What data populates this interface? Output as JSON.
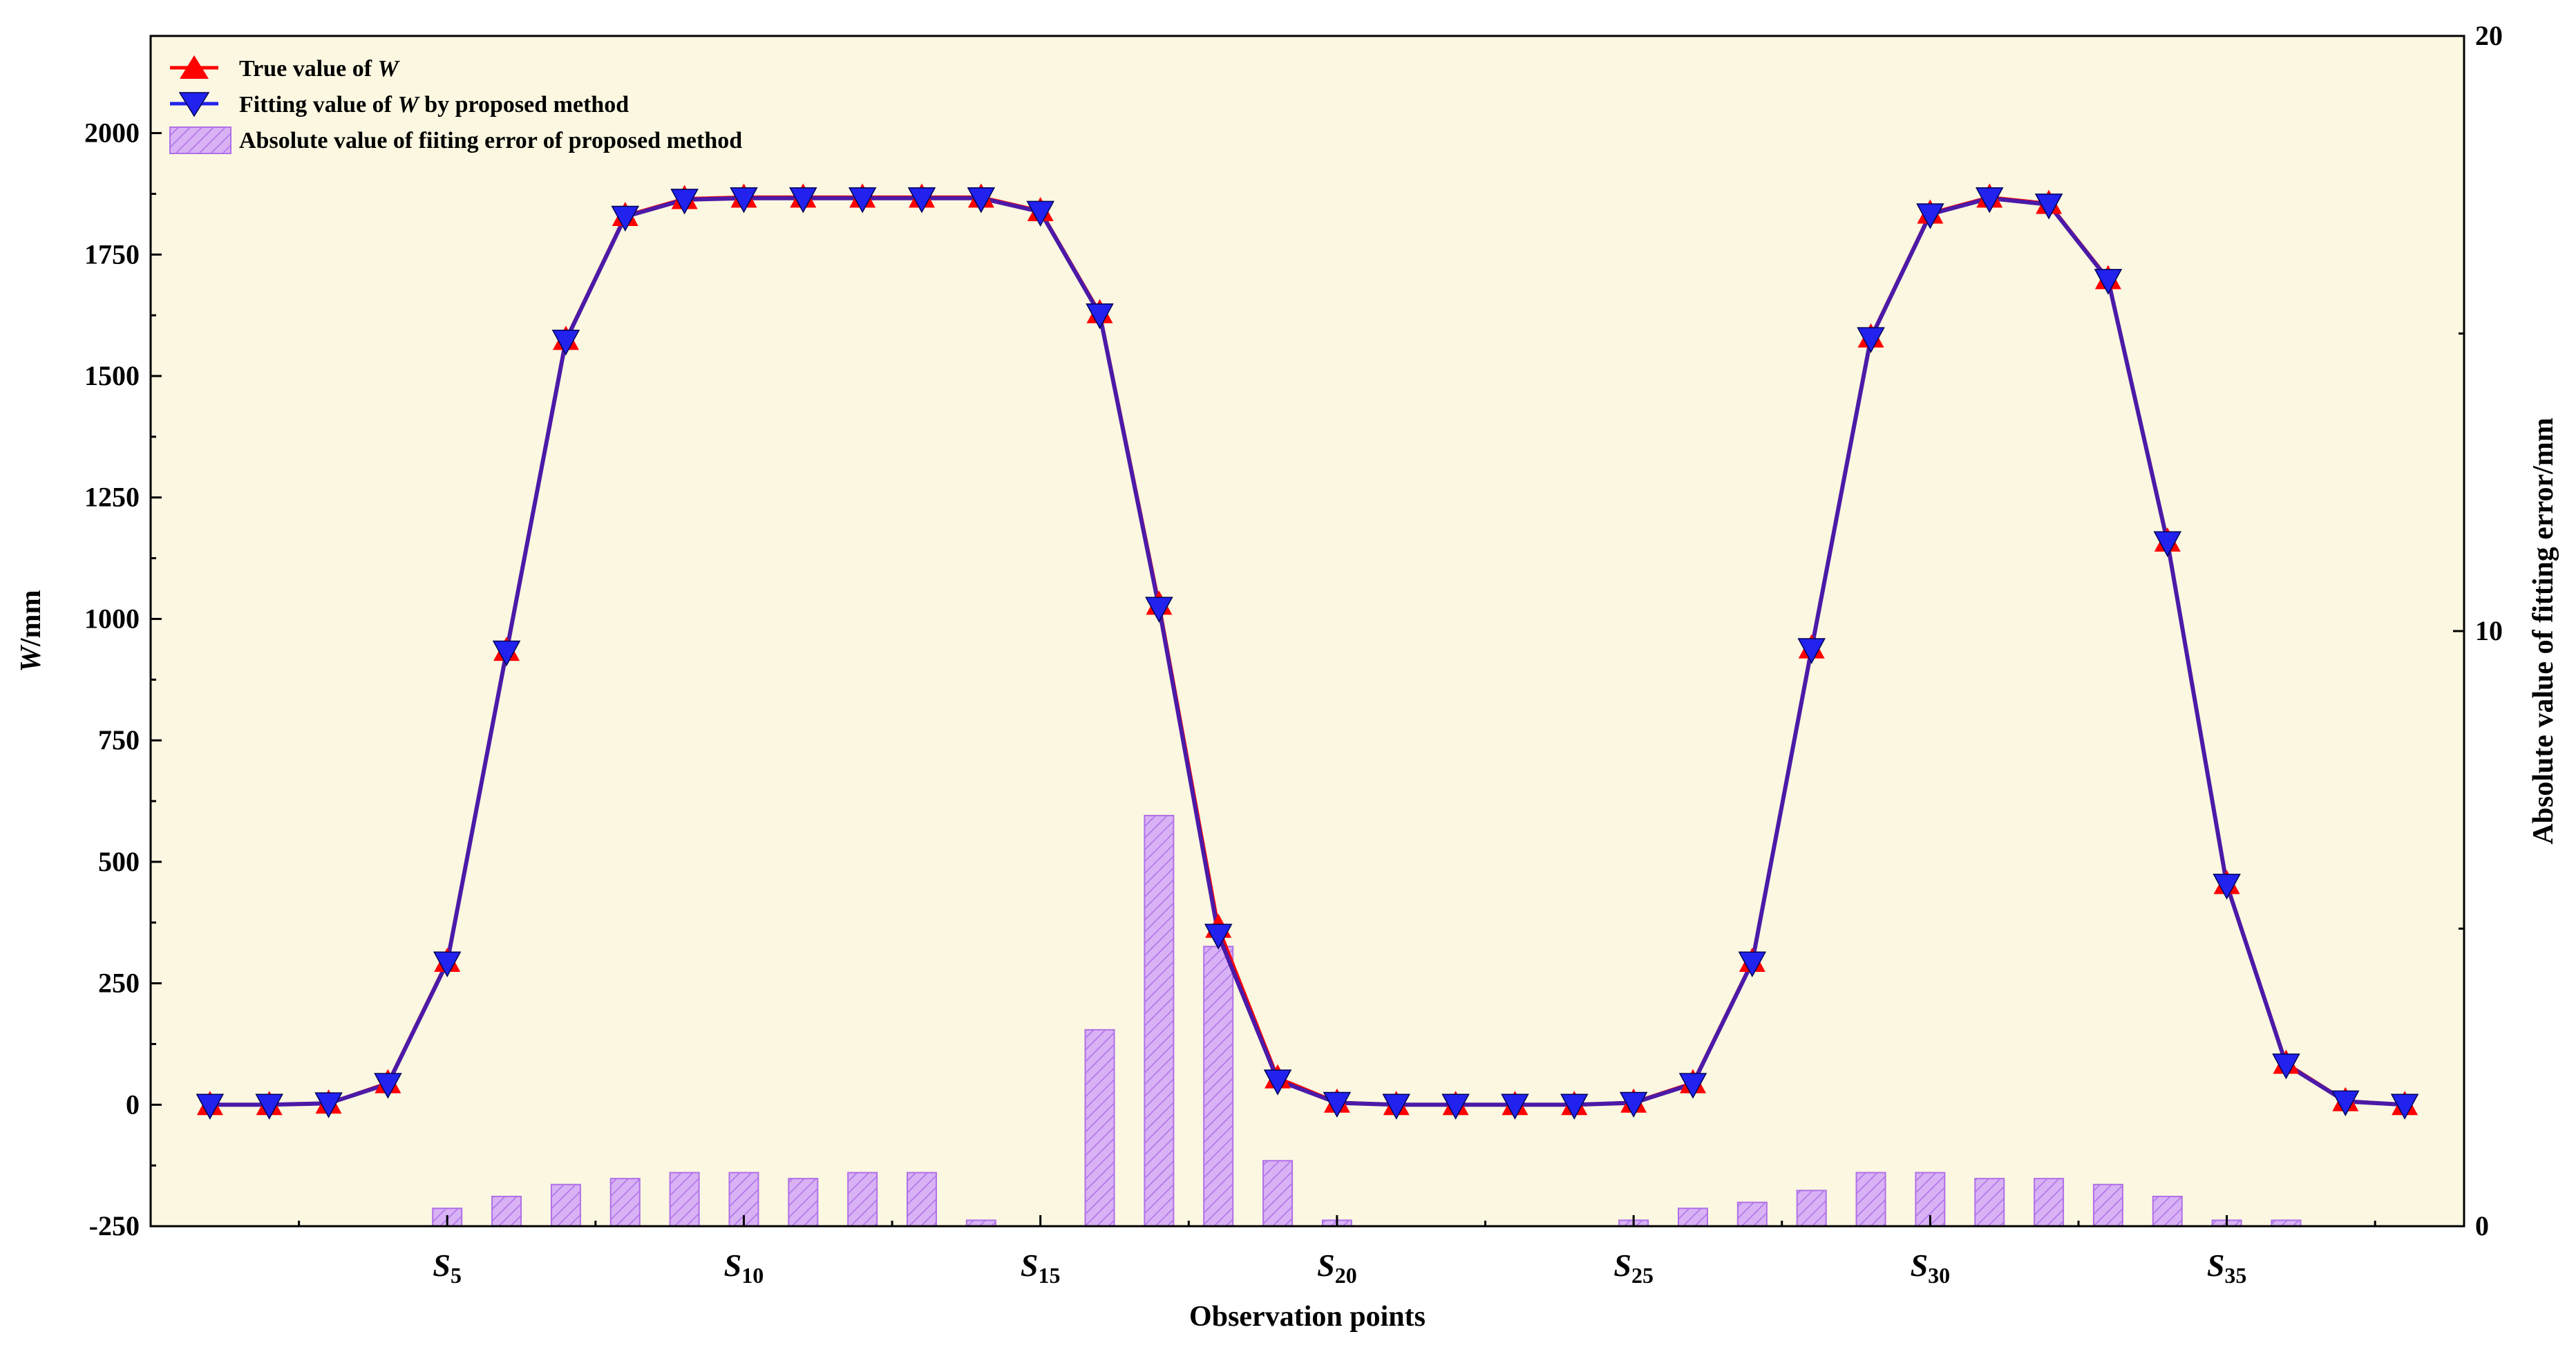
{
  "chart_data": {
    "type": "line",
    "x_label": "Observation points",
    "y_label_italic": "W",
    "y_label_suffix": "/mm",
    "y2_label": "Absolute value of fitting error/mm",
    "x_count": 38,
    "x_tick_labels": [
      {
        "index": 5,
        "base": "S",
        "sub": "5"
      },
      {
        "index": 10,
        "base": "S",
        "sub": "10"
      },
      {
        "index": 15,
        "base": "S",
        "sub": "15"
      },
      {
        "index": 20,
        "base": "S",
        "sub": "20"
      },
      {
        "index": 25,
        "base": "S",
        "sub": "25"
      },
      {
        "index": 30,
        "base": "S",
        "sub": "30"
      },
      {
        "index": 35,
        "base": "S",
        "sub": "35"
      }
    ],
    "y_ticks": [
      "-250",
      "0",
      "250",
      "500",
      "750",
      "1000",
      "1250",
      "1500",
      "1750",
      "2000"
    ],
    "y_lim": [
      -250,
      2200
    ],
    "y2_ticks": [
      "0",
      "10",
      "20"
    ],
    "y2_lim": [
      0,
      20
    ],
    "legend": [
      {
        "text_plain": "True value of ",
        "text_italic": "W",
        "text_after": ""
      },
      {
        "text_plain": "Fitting value of ",
        "text_italic": "W",
        "text_after": " by proposed method"
      },
      {
        "text_plain": "Absolute value of fiiting error of proposed method",
        "text_italic": "",
        "text_after": ""
      }
    ],
    "series": [
      {
        "name": "True value of W",
        "marker": "triangle-up",
        "color": "#ff0000",
        "values": [
          0,
          0,
          3,
          45,
          295,
          935,
          1575,
          1830,
          1865,
          1868,
          1868,
          1868,
          1868,
          1868,
          1840,
          1630,
          1030,
          365,
          55,
          5,
          0,
          0,
          0,
          0,
          5,
          45,
          295,
          940,
          1580,
          1835,
          1868,
          1855,
          1700,
          1160,
          455,
          85,
          8,
          0
        ]
      },
      {
        "name": "Fitting value of W by proposed method",
        "marker": "triangle-down",
        "color": "#2222ee",
        "values": [
          0,
          0,
          3,
          43,
          293,
          933,
          1573,
          1828,
          1863,
          1866,
          1866,
          1866,
          1866,
          1866,
          1838,
          1627,
          1023,
          350,
          50,
          4,
          0,
          0,
          0,
          0,
          4,
          43,
          293,
          938,
          1578,
          1833,
          1866,
          1853,
          1698,
          1158,
          453,
          83,
          7,
          0
        ]
      },
      {
        "name": "Absolute value of fiiting error of proposed method",
        "type": "bar",
        "color": "#d8b2f5",
        "edge_color": "#b070e8",
        "values": [
          0,
          0,
          0,
          0,
          0.3,
          0.5,
          0.7,
          0.8,
          0.9,
          0.9,
          0.8,
          0.9,
          0.9,
          0.1,
          0,
          3.3,
          6.9,
          4.7,
          1.1,
          0.1,
          0,
          0,
          0,
          0,
          0.1,
          0.3,
          0.4,
          0.6,
          0.9,
          0.9,
          0.8,
          0.8,
          0.7,
          0.5,
          0.1,
          0.1,
          0,
          0
        ]
      }
    ],
    "colors": {
      "plot_background": "#fbf7e1",
      "line_color": "#4b1aa8"
    }
  }
}
